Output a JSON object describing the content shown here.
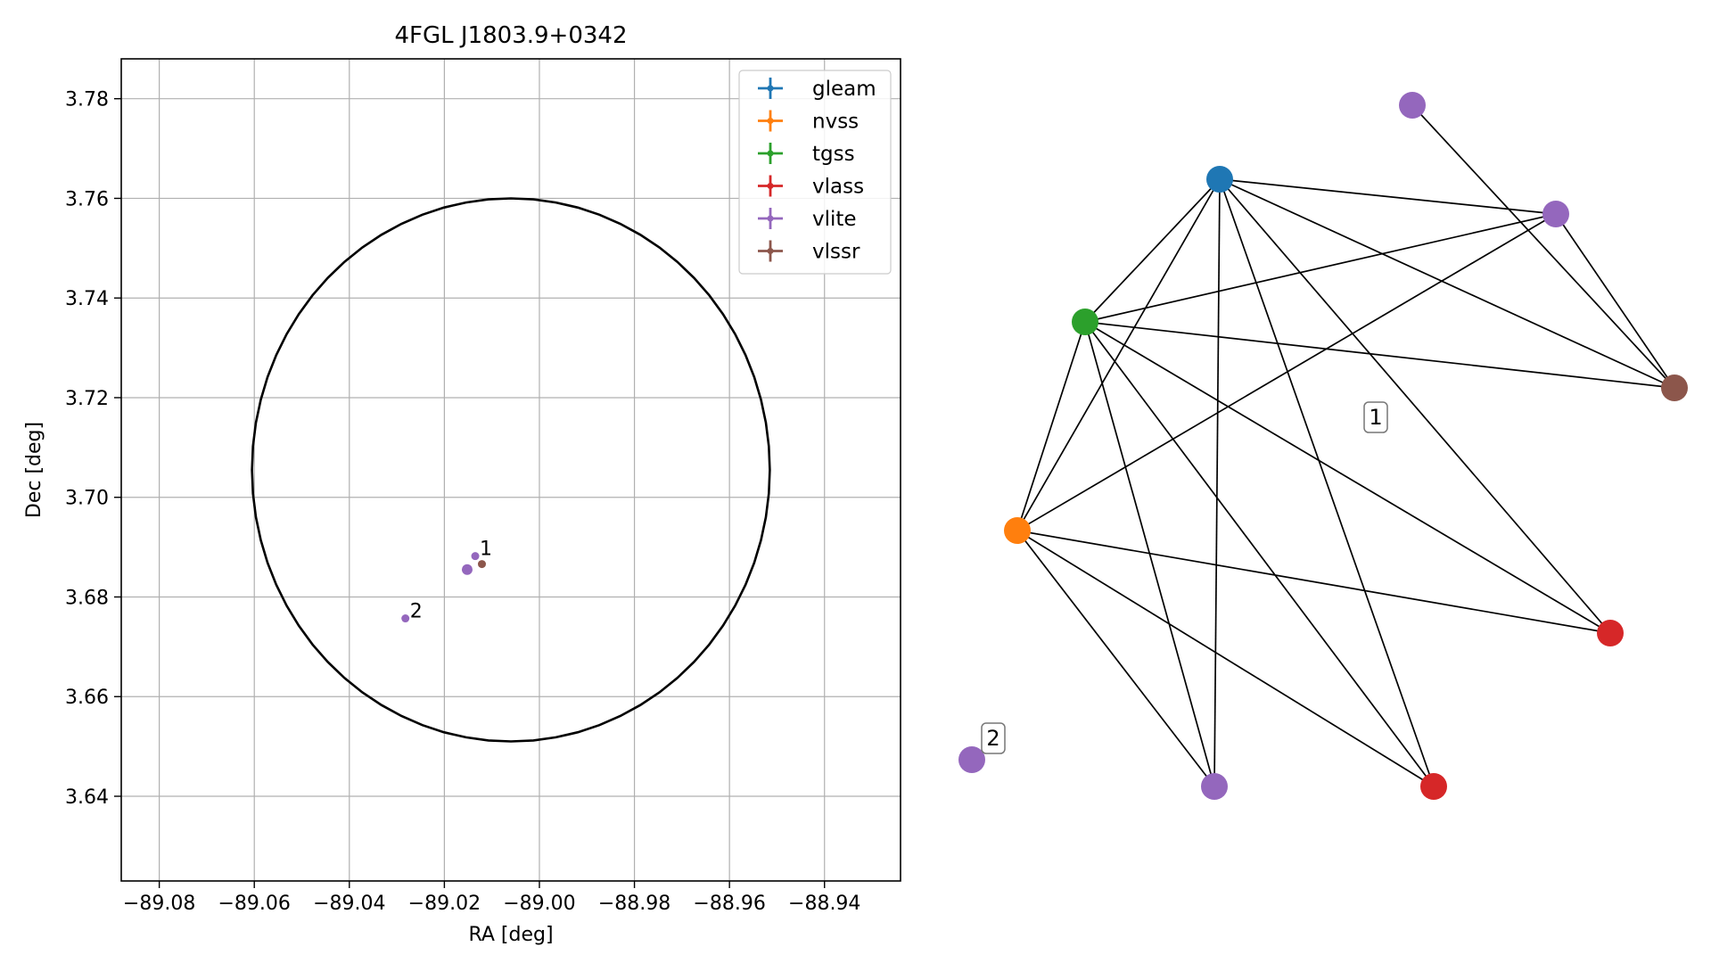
{
  "chart_data": [
    {
      "type": "scatter",
      "title": "4FGL J1803.9+0342",
      "xlabel": "RA [deg]",
      "ylabel": "Dec [deg]",
      "xlim": [
        -89.088,
        -88.924
      ],
      "ylim": [
        3.623,
        3.788
      ],
      "xticks": [
        -89.08,
        -89.06,
        -89.04,
        -89.02,
        -89.0,
        -88.98,
        -88.96,
        -88.94
      ],
      "xtick_labels": [
        "−89.08",
        "−89.06",
        "−89.04",
        "−89.02",
        "−89.00",
        "−88.98",
        "−88.96",
        "−88.94"
      ],
      "yticks": [
        3.64,
        3.66,
        3.68,
        3.7,
        3.72,
        3.74,
        3.76,
        3.78
      ],
      "ytick_labels": [
        "3.64",
        "3.66",
        "3.68",
        "3.70",
        "3.72",
        "3.74",
        "3.76",
        "3.78"
      ],
      "grid": true,
      "legend_position": "top-right",
      "circle": {
        "ra": -89.006,
        "dec": 3.7055,
        "radius_deg": 0.0545,
        "color": "#000000"
      },
      "series": [
        {
          "name": "gleam",
          "color": "#1f77b4",
          "points": []
        },
        {
          "name": "nvss",
          "color": "#ff7f0e",
          "points": []
        },
        {
          "name": "tgss",
          "color": "#2ca02c",
          "points": []
        },
        {
          "name": "vlass",
          "color": "#d62728",
          "points": []
        },
        {
          "name": "vlite",
          "color": "#9467bd",
          "points": [
            {
              "ra": -89.0135,
              "dec": 3.6882
            },
            {
              "ra": -89.0152,
              "dec": 3.6855
            },
            {
              "ra": -89.0282,
              "dec": 3.6757
            }
          ]
        },
        {
          "name": "vlssr",
          "color": "#8c564b",
          "points": [
            {
              "ra": -89.0121,
              "dec": 3.6866
            }
          ]
        }
      ],
      "annotations": [
        {
          "text": "1",
          "ra": -89.0135,
          "dec": 3.6882
        },
        {
          "text": "2",
          "ra": -89.0282,
          "dec": 3.6757
        }
      ]
    },
    {
      "type": "network",
      "nodes": [
        {
          "id": "gleam",
          "color": "#1f77b4"
        },
        {
          "id": "nvss",
          "color": "#ff7f0e"
        },
        {
          "id": "tgss",
          "color": "#2ca02c"
        },
        {
          "id": "vlite_a",
          "color": "#9467bd"
        },
        {
          "id": "vlite_b",
          "color": "#9467bd"
        },
        {
          "id": "vlssr",
          "color": "#8c564b"
        },
        {
          "id": "vlass_a",
          "color": "#d62728"
        },
        {
          "id": "vlass_b",
          "color": "#d62728"
        },
        {
          "id": "vlite_c",
          "color": "#9467bd"
        },
        {
          "id": "vlite_d",
          "color": "#9467bd"
        }
      ],
      "edges": [
        [
          "gleam",
          "vlite_b"
        ],
        [
          "gleam",
          "vlssr"
        ],
        [
          "gleam",
          "tgss"
        ],
        [
          "gleam",
          "nvss"
        ],
        [
          "gleam",
          "vlite_c"
        ],
        [
          "gleam",
          "vlass_a"
        ],
        [
          "gleam",
          "vlass_b"
        ],
        [
          "vlite_a",
          "vlssr"
        ],
        [
          "vlite_b",
          "vlssr"
        ],
        [
          "tgss",
          "vlite_b"
        ],
        [
          "tgss",
          "vlssr"
        ],
        [
          "tgss",
          "nvss"
        ],
        [
          "tgss",
          "vlite_c"
        ],
        [
          "tgss",
          "vlass_a"
        ],
        [
          "tgss",
          "vlass_b"
        ],
        [
          "nvss",
          "vlite_b"
        ],
        [
          "nvss",
          "vlass_b"
        ],
        [
          "nvss",
          "vlite_c"
        ],
        [
          "nvss",
          "vlass_a"
        ]
      ],
      "group_labels": [
        "1",
        "2"
      ]
    }
  ]
}
